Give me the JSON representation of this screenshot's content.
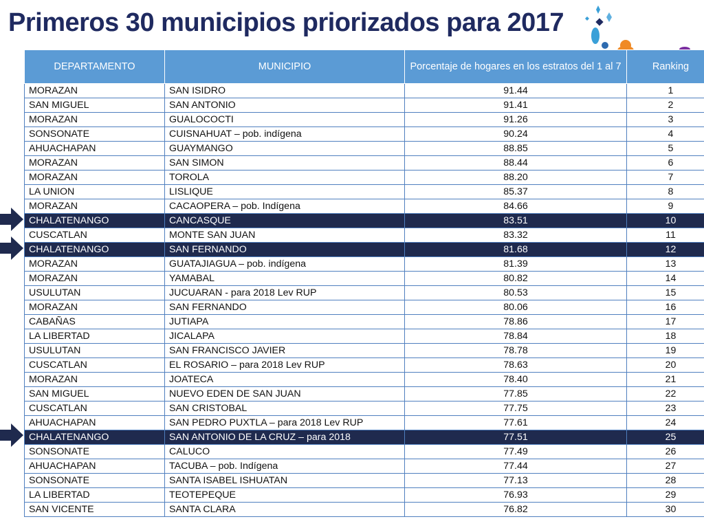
{
  "title": "Primeros 30 municipios priorizados para 2017",
  "table": {
    "headers": [
      "DEPARTAMENTO",
      "MUNICIPIO",
      "Porcentaje de hogares en los estratos del 1 al 7",
      "Ranking"
    ],
    "rows": [
      {
        "departamento": "MORAZAN",
        "municipio": "SAN ISIDRO",
        "porcentaje": "91.44",
        "ranking": "1",
        "highlight": false
      },
      {
        "departamento": "SAN MIGUEL",
        "municipio": "SAN ANTONIO",
        "porcentaje": "91.41",
        "ranking": "2",
        "highlight": false
      },
      {
        "departamento": "MORAZAN",
        "municipio": "GUALOCOCTI",
        "porcentaje": "91.26",
        "ranking": "3",
        "highlight": false
      },
      {
        "departamento": "SONSONATE",
        "municipio": "CUISNAHUAT – pob. indígena",
        "porcentaje": "90.24",
        "ranking": "4",
        "highlight": false
      },
      {
        "departamento": "AHUACHAPAN",
        "municipio": "GUAYMANGO",
        "porcentaje": "88.85",
        "ranking": "5",
        "highlight": false
      },
      {
        "departamento": "MORAZAN",
        "municipio": "SAN SIMON",
        "porcentaje": "88.44",
        "ranking": "6",
        "highlight": false
      },
      {
        "departamento": "MORAZAN",
        "municipio": "TOROLA",
        "porcentaje": "88.20",
        "ranking": "7",
        "highlight": false
      },
      {
        "departamento": "LA UNION",
        "municipio": "LISLIQUE",
        "porcentaje": "85.37",
        "ranking": "8",
        "highlight": false
      },
      {
        "departamento": "MORAZAN",
        "municipio": "CACAOPERA – pob. Indígena",
        "porcentaje": "84.66",
        "ranking": "9",
        "highlight": false
      },
      {
        "departamento": "CHALATENANGO",
        "municipio": "CANCASQUE",
        "porcentaje": "83.51",
        "ranking": "10",
        "highlight": true
      },
      {
        "departamento": "CUSCATLAN",
        "municipio": "MONTE SAN JUAN",
        "porcentaje": "83.32",
        "ranking": "11",
        "highlight": false
      },
      {
        "departamento": "CHALATENANGO",
        "municipio": "SAN FERNANDO",
        "porcentaje": "81.68",
        "ranking": "12",
        "highlight": true
      },
      {
        "departamento": "MORAZAN",
        "municipio": "GUATAJIAGUA – pob. indígena",
        "porcentaje": "81.39",
        "ranking": "13",
        "highlight": false
      },
      {
        "departamento": "MORAZAN",
        "municipio": "YAMABAL",
        "porcentaje": "80.82",
        "ranking": "14",
        "highlight": false
      },
      {
        "departamento": "USULUTAN",
        "municipio": "JUCUARAN  - para 2018 Lev RUP",
        "porcentaje": "80.53",
        "ranking": "15",
        "highlight": false
      },
      {
        "departamento": "MORAZAN",
        "municipio": "SAN FERNANDO",
        "porcentaje": "80.06",
        "ranking": "16",
        "highlight": false
      },
      {
        "departamento": "CABAÑAS",
        "municipio": "JUTIAPA",
        "porcentaje": "78.86",
        "ranking": "17",
        "highlight": false
      },
      {
        "departamento": "LA LIBERTAD",
        "municipio": "JICALAPA",
        "porcentaje": "78.84",
        "ranking": "18",
        "highlight": false
      },
      {
        "departamento": "USULUTAN",
        "municipio": "SAN FRANCISCO JAVIER",
        "porcentaje": "78.78",
        "ranking": "19",
        "highlight": false
      },
      {
        "departamento": "CUSCATLAN",
        "municipio": "EL ROSARIO – para 2018 Lev RUP",
        "porcentaje": "78.63",
        "ranking": "20",
        "highlight": false
      },
      {
        "departamento": "MORAZAN",
        "municipio": "JOATECA",
        "porcentaje": "78.40",
        "ranking": "21",
        "highlight": false
      },
      {
        "departamento": "SAN MIGUEL",
        "municipio": "NUEVO EDEN DE SAN JUAN",
        "porcentaje": "77.85",
        "ranking": "22",
        "highlight": false
      },
      {
        "departamento": "CUSCATLAN",
        "municipio": "SAN CRISTOBAL",
        "porcentaje": "77.75",
        "ranking": "23",
        "highlight": false
      },
      {
        "departamento": "AHUACHAPAN",
        "municipio": "SAN PEDRO PUXTLA – para 2018 Lev RUP",
        "porcentaje": "77.61",
        "ranking": "24",
        "highlight": false
      },
      {
        "departamento": "CHALATENANGO",
        "municipio": "SAN ANTONIO DE LA CRUZ – para 2018",
        "porcentaje": "77.51",
        "ranking": "25",
        "highlight": true
      },
      {
        "departamento": "SONSONATE",
        "municipio": "CALUCO",
        "porcentaje": "77.49",
        "ranking": "26",
        "highlight": false
      },
      {
        "departamento": "AHUACHAPAN",
        "municipio": "TACUBA – pob. Indígena",
        "porcentaje": "77.44",
        "ranking": "27",
        "highlight": false
      },
      {
        "departamento": "SONSONATE",
        "municipio": "SANTA ISABEL ISHUATAN",
        "porcentaje": "77.13",
        "ranking": "28",
        "highlight": false
      },
      {
        "departamento": "LA LIBERTAD",
        "municipio": "TEOTEPEQUE",
        "porcentaje": "76.93",
        "ranking": "29",
        "highlight": false
      },
      {
        "departamento": "SAN VICENTE",
        "municipio": "SANTA CLARA",
        "porcentaje": "76.82",
        "ranking": "30",
        "highlight": false
      }
    ]
  },
  "colors": {
    "title": "#1f2a60",
    "header_bg": "#5b9bd5",
    "highlight_bg": "#1f2a4e",
    "arrow": "#1f2a4e"
  },
  "icons": [
    "arrow-right-icon",
    "decorative-shapes-icon"
  ]
}
